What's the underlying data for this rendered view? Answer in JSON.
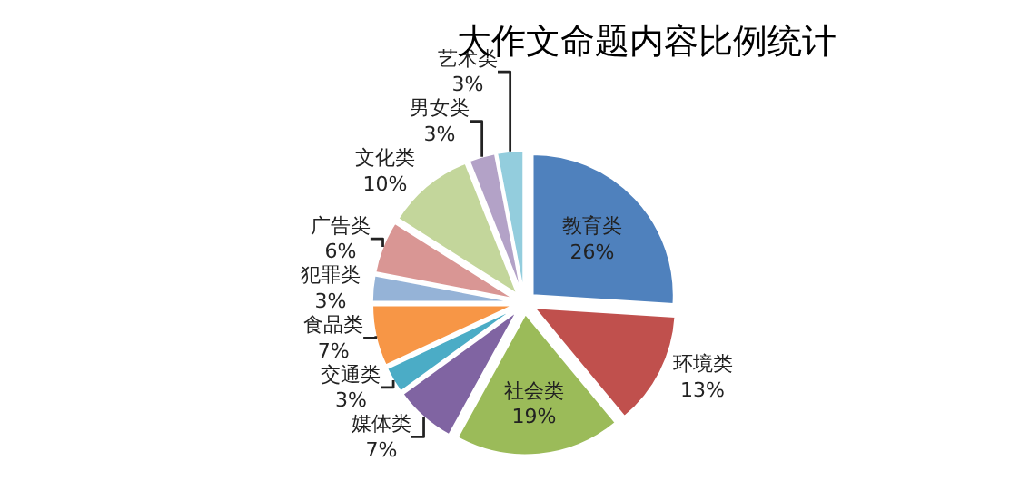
{
  "chart_data": {
    "type": "pie",
    "title": "大作文命题内容比例统计",
    "categories": [
      "教育类",
      "环境类",
      "社会类",
      "媒体类",
      "交通类",
      "食品类",
      "犯罪类",
      "广告类",
      "文化类",
      "男女类",
      "艺术类"
    ],
    "values": [
      26,
      13,
      19,
      7,
      3,
      7,
      3,
      6,
      10,
      3,
      3
    ],
    "value_labels": [
      "26%",
      "13%",
      "19%",
      "7%",
      "3%",
      "7%",
      "3%",
      "6%",
      "10%",
      "3%",
      "3%"
    ],
    "colors": [
      "#4f81bd",
      "#c0504d",
      "#9bbb59",
      "#8064a2",
      "#4bacc6",
      "#f79646",
      "#95b3d7",
      "#d99694",
      "#c3d69b",
      "#b3a2c7",
      "#93cddd"
    ],
    "legend": false
  }
}
